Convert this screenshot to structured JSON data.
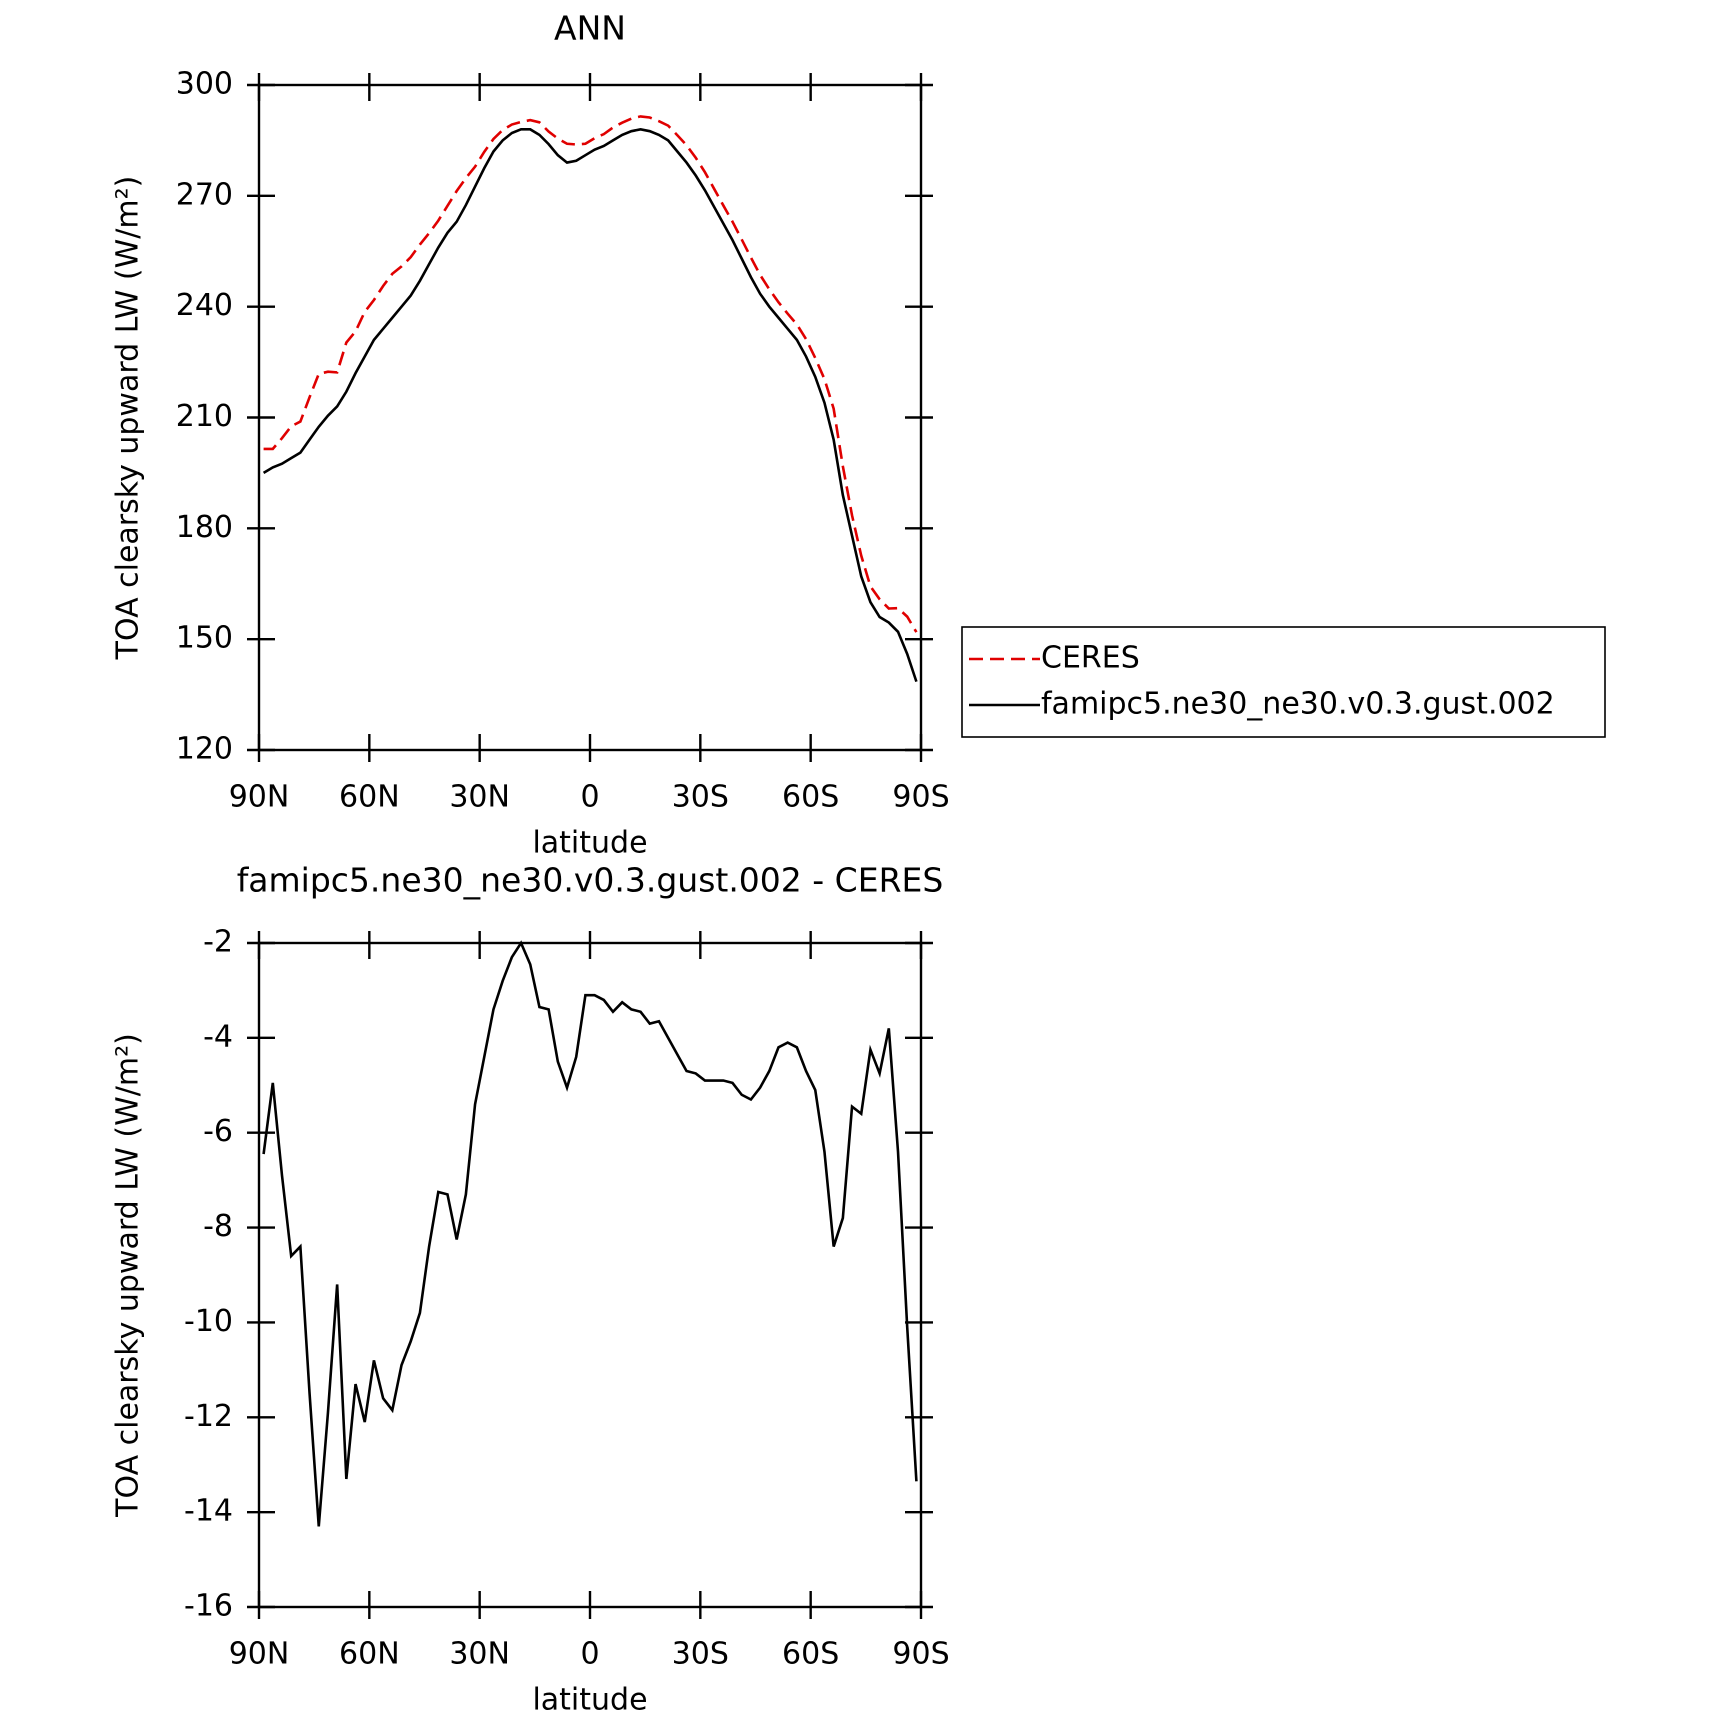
{
  "chart_data": [
    {
      "type": "line",
      "title": "ANN",
      "xlabel": "latitude",
      "ylabel": "TOA clearsky upward LW (W/m²)",
      "x": [
        88.75,
        86.25,
        83.75,
        81.25,
        78.75,
        76.25,
        73.75,
        71.25,
        68.75,
        66.25,
        63.75,
        61.25,
        58.75,
        56.25,
        53.75,
        51.25,
        48.75,
        46.25,
        43.75,
        41.25,
        38.75,
        36.25,
        33.75,
        31.25,
        28.75,
        26.25,
        23.75,
        21.25,
        18.75,
        16.25,
        13.75,
        11.25,
        8.75,
        6.25,
        3.75,
        1.25,
        -1.25,
        -3.75,
        -6.25,
        -8.75,
        -11.25,
        -13.75,
        -16.25,
        -18.75,
        -21.25,
        -23.75,
        -26.25,
        -28.75,
        -31.25,
        -33.75,
        -36.25,
        -38.75,
        -41.25,
        -43.75,
        -46.25,
        -48.75,
        -51.25,
        -53.75,
        -56.25,
        -58.75,
        -61.25,
        -63.75,
        -66.25,
        -68.75,
        -71.25,
        -73.75,
        -76.25,
        -78.75,
        -81.25,
        -83.75,
        -86.25,
        -88.75
      ],
      "series": [
        {
          "name": "CERES",
          "color": "#e00000",
          "dashed": true,
          "values": [
            201.5,
            201.5,
            204.4,
            207.6,
            208.9,
            215.5,
            221.8,
            222.4,
            222.2,
            230.3,
            233.3,
            238.6,
            241.8,
            245.6,
            248.9,
            250.9,
            253.4,
            256.8,
            259.9,
            263.3,
            267.3,
            271.3,
            274.8,
            277.9,
            281.9,
            285.4,
            287.8,
            289.3,
            290,
            290.5,
            289.9,
            287.4,
            285.5,
            284.1,
            283.9,
            284.1,
            285.6,
            286.7,
            288.5,
            289.8,
            290.9,
            291.5,
            291.2,
            290.2,
            289,
            286.4,
            283.7,
            280.3,
            276.4,
            271.9,
            267.4,
            263,
            258.2,
            253.3,
            248.6,
            244.7,
            241.2,
            238.1,
            235.2,
            231.2,
            226.1,
            220.4,
            212.4,
            196.8,
            183.5,
            172.6,
            164.3,
            160.8,
            158.3,
            158.4,
            156.1,
            151.9
          ]
        },
        {
          "name": "famipc5.ne30_ne30.v0.3.gust.002",
          "color": "#000000",
          "dashed": false,
          "values": [
            195,
            196.5,
            197.5,
            199,
            200.5,
            204,
            207.5,
            210.5,
            213,
            217,
            222,
            226.5,
            231,
            234,
            237,
            240,
            243,
            247,
            251.5,
            256,
            260,
            263,
            267.5,
            272.5,
            277.5,
            282,
            285,
            287,
            288,
            288,
            286.5,
            284,
            281,
            279,
            279.5,
            281,
            282.5,
            283.5,
            285,
            286.5,
            287.5,
            288,
            287.5,
            286.5,
            285,
            282,
            279,
            275.5,
            271.5,
            267,
            262.5,
            258,
            253,
            248,
            243.5,
            240,
            237,
            234,
            231,
            226.5,
            221,
            214,
            204,
            189,
            178,
            167,
            160,
            156,
            154.5,
            152,
            146,
            138.5
          ]
        }
      ],
      "xlim": [
        90,
        -90
      ],
      "xticks": [
        {
          "value": 90,
          "label": "90N"
        },
        {
          "value": 60,
          "label": "60N"
        },
        {
          "value": 30,
          "label": "30N"
        },
        0,
        {
          "value": -30,
          "label": "30S"
        },
        {
          "value": -60,
          "label": "60S"
        },
        {
          "value": -90,
          "label": "90S"
        }
      ],
      "ylim": [
        120,
        300
      ],
      "yticks": [
        120,
        150,
        180,
        210,
        240,
        270,
        300
      ],
      "legend": "outside-right"
    },
    {
      "type": "line",
      "title": "famipc5.ne30_ne30.v0.3.gust.002 - CERES",
      "xlabel": "latitude",
      "ylabel": "TOA clearsky upward LW (W/m²)",
      "x": [
        88.75,
        86.25,
        83.75,
        81.25,
        78.75,
        76.25,
        73.75,
        71.25,
        68.75,
        66.25,
        63.75,
        61.25,
        58.75,
        56.25,
        53.75,
        51.25,
        48.75,
        46.25,
        43.75,
        41.25,
        38.75,
        36.25,
        33.75,
        31.25,
        28.75,
        26.25,
        23.75,
        21.25,
        18.75,
        16.25,
        13.75,
        11.25,
        8.75,
        6.25,
        3.75,
        1.25,
        -1.25,
        -3.75,
        -6.25,
        -8.75,
        -11.25,
        -13.75,
        -16.25,
        -18.75,
        -21.25,
        -23.75,
        -26.25,
        -28.75,
        -31.25,
        -33.75,
        -36.25,
        -38.75,
        -41.25,
        -43.75,
        -46.25,
        -48.75,
        -51.25,
        -53.75,
        -56.25,
        -58.75,
        -61.25,
        -63.75,
        -66.25,
        -68.75,
        -71.25,
        -73.75,
        -76.25,
        -78.75,
        -81.25,
        -83.75,
        -86.25,
        -88.75
      ],
      "series": [
        {
          "color": "#000000",
          "dashed": false,
          "values": [
            -6.45,
            -4.95,
            -6.9,
            -8.6,
            -8.4,
            -11.5,
            -14.3,
            -11.9,
            -9.2,
            -13.3,
            -11.3,
            -12.1,
            -10.8,
            -11.6,
            -11.85,
            -10.9,
            -10.4,
            -9.8,
            -8.4,
            -7.25,
            -7.3,
            -8.25,
            -7.3,
            -5.4,
            -4.4,
            -3.4,
            -2.8,
            -2.3,
            -2,
            -2.45,
            -3.35,
            -3.4,
            -4.5,
            -5.05,
            -4.4,
            -3.1,
            -3.1,
            -3.2,
            -3.45,
            -3.25,
            -3.4,
            -3.45,
            -3.7,
            -3.65,
            -4,
            -4.35,
            -4.7,
            -4.75,
            -4.9,
            -4.9,
            -4.9,
            -4.95,
            -5.2,
            -5.3,
            -5.05,
            -4.7,
            -4.2,
            -4.1,
            -4.2,
            -4.7,
            -5.1,
            -6.4,
            -8.4,
            -7.8,
            -5.45,
            -5.6,
            -4.25,
            -4.75,
            -3.8,
            -6.4,
            -10.1,
            -13.35
          ]
        }
      ],
      "xlim": [
        90,
        -90
      ],
      "xticks": [
        {
          "value": 90,
          "label": "90N"
        },
        {
          "value": 60,
          "label": "60N"
        },
        {
          "value": 30,
          "label": "30N"
        },
        0,
        {
          "value": -30,
          "label": "30S"
        },
        {
          "value": -60,
          "label": "60S"
        },
        {
          "value": -90,
          "label": "90S"
        }
      ],
      "ylim": [
        -16,
        -2
      ],
      "yticks": [
        -16,
        -14,
        -12,
        -10,
        -8,
        -6,
        -4,
        -2
      ]
    }
  ]
}
